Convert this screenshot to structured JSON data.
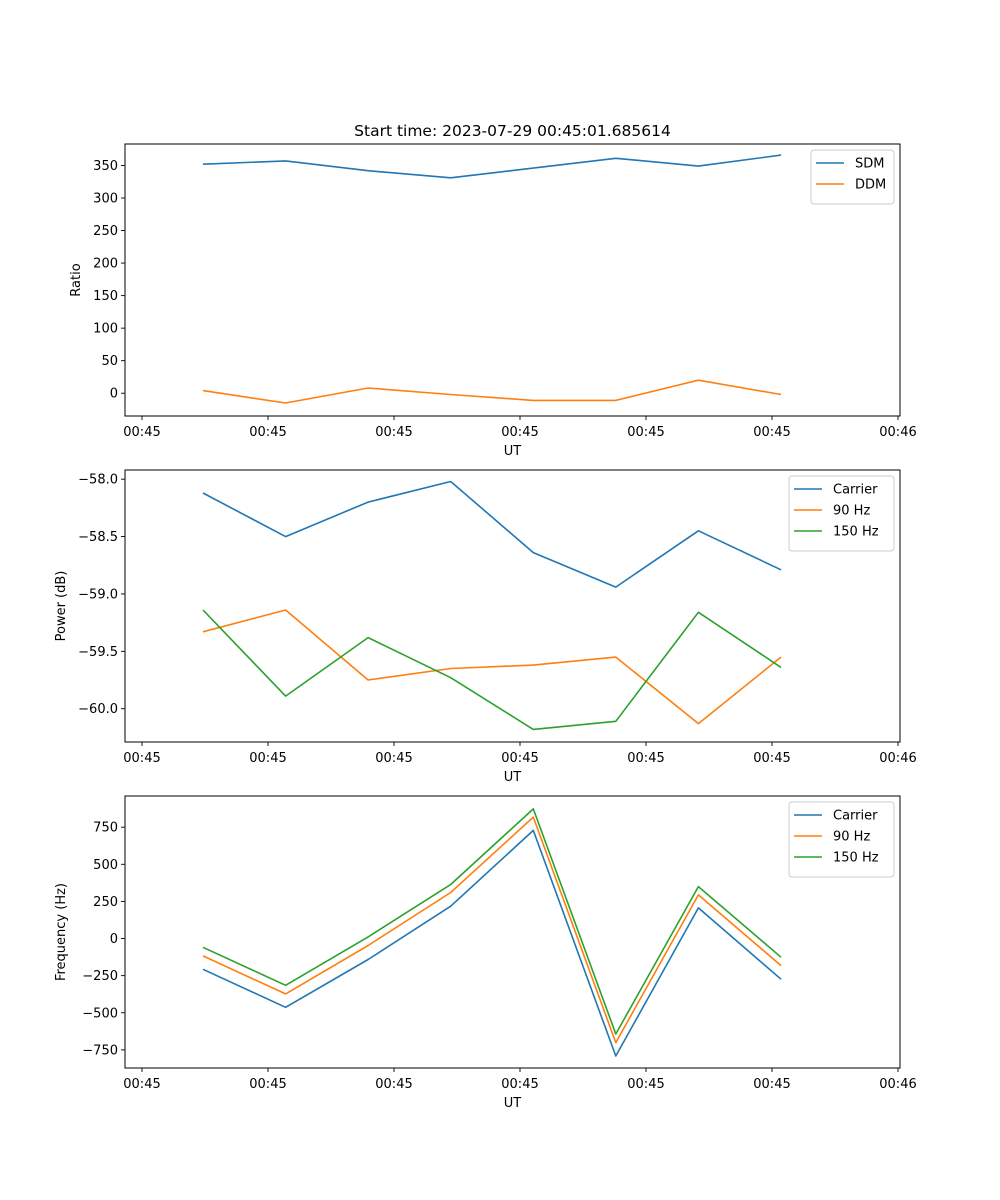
{
  "chart_data": [
    {
      "type": "line",
      "title": "Start time: 2023-07-29 00:45:01.685614",
      "xlabel": "UT",
      "ylabel": "Ratio",
      "x_tick_labels": [
        "00:45",
        "00:45",
        "00:45",
        "00:45",
        "00:45",
        "00:45",
        "00:46"
      ],
      "x_index": [
        1,
        2,
        3,
        4,
        5,
        6,
        7,
        8
      ],
      "ylim": [
        -35,
        383
      ],
      "y_ticks": [
        0,
        50,
        100,
        150,
        200,
        250,
        300,
        350
      ],
      "y_tick_labels": [
        "0",
        "50",
        "100",
        "150",
        "200",
        "250",
        "300",
        "350"
      ],
      "grid": false,
      "legend_position": "top-right",
      "series": [
        {
          "name": "SDM",
          "color": "#1f77b4",
          "values": [
            352,
            357,
            342,
            331,
            346,
            361,
            349,
            366
          ]
        },
        {
          "name": "DDM",
          "color": "#ff7f0e",
          "values": [
            4,
            -15,
            8,
            -2,
            -11,
            -11,
            20,
            -2
          ]
        }
      ]
    },
    {
      "type": "line",
      "title": "",
      "xlabel": "UT",
      "ylabel": "Power (dB)",
      "x_tick_labels": [
        "00:45",
        "00:45",
        "00:45",
        "00:45",
        "00:45",
        "00:45",
        "00:46"
      ],
      "x_index": [
        1,
        2,
        3,
        4,
        5,
        6,
        7,
        8
      ],
      "ylim": [
        -60.29,
        -57.92
      ],
      "y_ticks": [
        -60.0,
        -59.5,
        -59.0,
        -58.5,
        -58.0
      ],
      "y_tick_labels": [
        "−60.0",
        "−59.5",
        "−59.0",
        "−58.5",
        "−58.0"
      ],
      "grid": false,
      "legend_position": "top-right",
      "series": [
        {
          "name": "Carrier",
          "color": "#1f77b4",
          "values": [
            -58.12,
            -58.5,
            -58.2,
            -58.02,
            -58.64,
            -58.94,
            -58.45,
            -58.79
          ]
        },
        {
          "name": "90 Hz",
          "color": "#ff7f0e",
          "values": [
            -59.33,
            -59.14,
            -59.75,
            -59.65,
            -59.62,
            -59.55,
            -60.13,
            -59.55
          ]
        },
        {
          "name": "150 Hz",
          "color": "#2ca02c",
          "values": [
            -59.14,
            -59.89,
            -59.38,
            -59.73,
            -60.18,
            -60.11,
            -59.16,
            -59.64
          ]
        }
      ]
    },
    {
      "type": "line",
      "title": "",
      "xlabel": "UT",
      "ylabel": "Frequency (Hz)",
      "x_tick_labels": [
        "00:45",
        "00:45",
        "00:45",
        "00:45",
        "00:45",
        "00:45",
        "00:46"
      ],
      "x_index": [
        1,
        2,
        3,
        4,
        5,
        6,
        7,
        8
      ],
      "ylim": [
        -872,
        960
      ],
      "y_ticks": [
        -750,
        -500,
        -250,
        0,
        250,
        500,
        750
      ],
      "y_tick_labels": [
        "−750",
        "−500",
        "−250",
        "0",
        "250",
        "500",
        "750"
      ],
      "grid": false,
      "legend_position": "top-right",
      "series": [
        {
          "name": "Carrier",
          "color": "#1f77b4",
          "values": [
            -207,
            -463,
            -141,
            218,
            728,
            -791,
            206,
            -274
          ]
        },
        {
          "name": "90 Hz",
          "color": "#ff7f0e",
          "values": [
            -117,
            -373,
            -47,
            310,
            818,
            -701,
            294,
            -182
          ]
        },
        {
          "name": "150 Hz",
          "color": "#2ca02c",
          "values": [
            -59,
            -315,
            11,
            364,
            873,
            -643,
            350,
            -126
          ]
        }
      ]
    }
  ]
}
